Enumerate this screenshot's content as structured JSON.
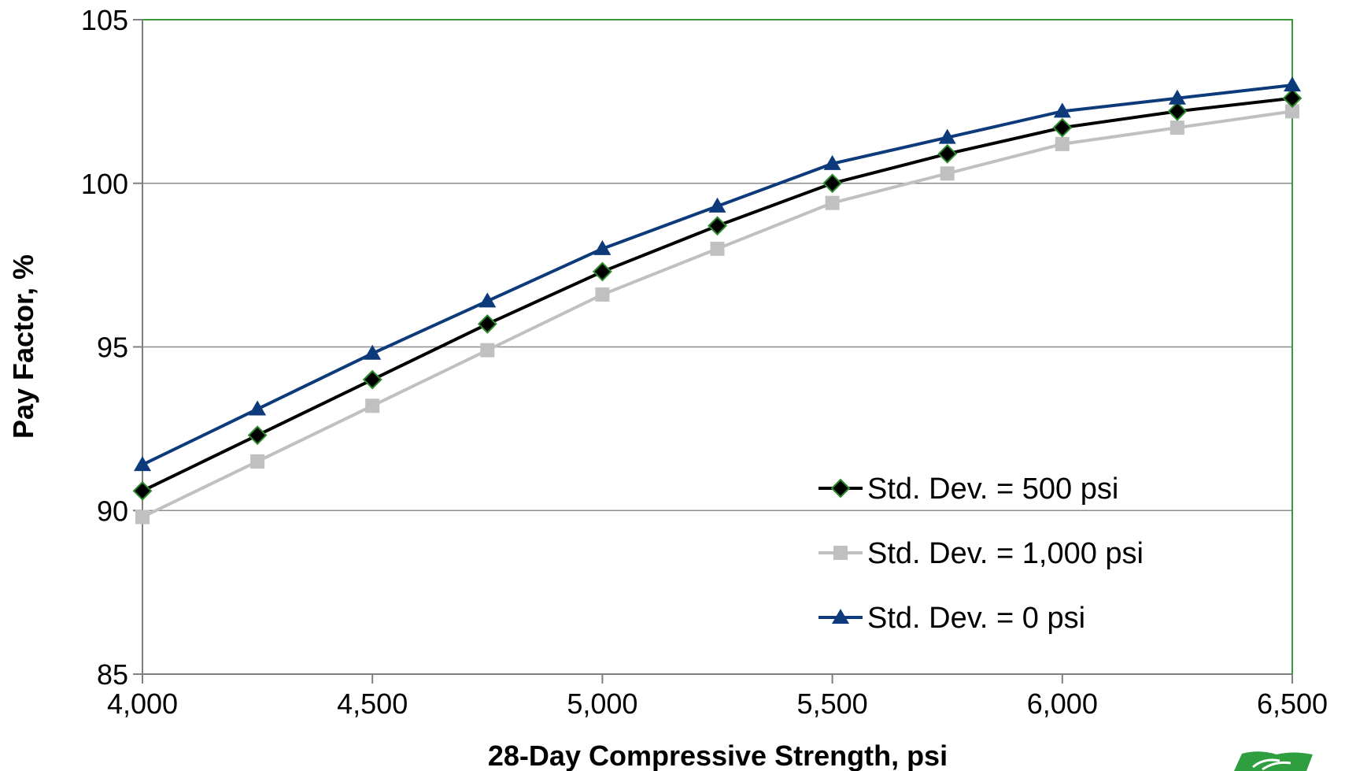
{
  "chart_data": {
    "type": "line",
    "xlabel": "28-Day Compressive Strength, psi",
    "ylabel": "Pay Factor, %",
    "xlim": [
      4000,
      6500
    ],
    "ylim": [
      85,
      105
    ],
    "x_ticks": [
      4000,
      4500,
      5000,
      5500,
      6000,
      6500
    ],
    "x_tick_labels": [
      "4,000",
      "4,500",
      "5,000",
      "5,500",
      "6,000",
      "6,500"
    ],
    "y_ticks": [
      85,
      90,
      95,
      100,
      105
    ],
    "y_tick_labels": [
      "85",
      "90",
      "95",
      "100",
      "105"
    ],
    "grid": "horizontal",
    "legend_position": "lower-right",
    "x": [
      4000,
      4250,
      4500,
      4750,
      5000,
      5250,
      5500,
      5750,
      6000,
      6250,
      6500
    ],
    "series": [
      {
        "name": "Std. Dev. = 500 psi",
        "color": "#000000",
        "marker": "diamond",
        "marker_edge": "#2e8b2e",
        "values": [
          90.6,
          92.3,
          94.0,
          95.7,
          97.3,
          98.7,
          100.0,
          100.9,
          101.7,
          102.2,
          102.6
        ]
      },
      {
        "name": "Std. Dev. = 1,000 psi",
        "color": "#c0c0c0",
        "marker": "square",
        "values": [
          89.8,
          91.5,
          93.2,
          94.9,
          96.6,
          98.0,
          99.4,
          100.3,
          101.2,
          101.7,
          102.2
        ]
      },
      {
        "name": "Std. Dev. = 0 psi",
        "color": "#0d3a7a",
        "marker": "triangle",
        "values": [
          91.4,
          93.1,
          94.8,
          96.4,
          98.0,
          99.3,
          100.6,
          101.4,
          102.2,
          102.6,
          103.0
        ]
      }
    ]
  },
  "colors": {
    "plot_border": "#3a9a3a",
    "gridline": "#8c8c8c",
    "logo": "#2e9e3e"
  },
  "icons": {
    "corner_logo": "state-dot-logo-icon"
  }
}
